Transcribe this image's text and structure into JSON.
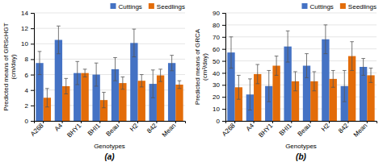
{
  "chart_data": [
    {
      "type": "bar",
      "ylabel": "Predicted means of GRScHGT\n(cm/day)",
      "xlabel": "Genotypes",
      "annotations": [
        "(a)"
      ],
      "categories": [
        "A268",
        "A4",
        "BHY1",
        "BHI1",
        "Beau",
        "H2",
        "842",
        "Mean"
      ],
      "series": [
        {
          "name": "Cuttings",
          "color": "#4472c4",
          "values": [
            7.5,
            10.5,
            6.2,
            6.0,
            6.7,
            10.1,
            4.8,
            7.5
          ],
          "errors": [
            1.5,
            1.8,
            1.5,
            1.5,
            1.5,
            1.8,
            1.8,
            1.0
          ]
        },
        {
          "name": "Seedlings",
          "color": "#e36c09",
          "values": [
            3.0,
            4.5,
            6.2,
            2.7,
            4.9,
            5.2,
            5.9,
            4.7
          ],
          "errors": [
            1.2,
            1.0,
            0.5,
            1.0,
            0.8,
            0.8,
            0.8,
            0.5
          ]
        }
      ],
      "ylim": [
        0,
        14
      ],
      "yticks": [
        0,
        2,
        4,
        6,
        8,
        10,
        12,
        14
      ],
      "grid": true,
      "legend": "upper right"
    },
    {
      "type": "bar",
      "ylabel": "Predicted means of GRCA\n(cm²/day)",
      "xlabel": "Genotypes",
      "annotations": [
        "(b)"
      ],
      "categories": [
        "A268",
        "A4",
        "BHY1",
        "BHI1",
        "Beau",
        "H2",
        "842",
        "Mean"
      ],
      "series": [
        {
          "name": "Cuttings",
          "color": "#4472c4",
          "values": [
            57,
            22,
            29,
            62,
            46,
            68,
            29,
            45
          ],
          "errors": [
            13,
            13,
            13,
            13,
            10,
            12,
            13,
            7
          ]
        },
        {
          "name": "Seedlings",
          "color": "#e36c09",
          "values": [
            28,
            39,
            46,
            33,
            33,
            35,
            54,
            38
          ],
          "errors": [
            10,
            8,
            8,
            8,
            8,
            7,
            12,
            6
          ]
        }
      ],
      "ylim": [
        0,
        90
      ],
      "yticks": [
        0,
        10,
        20,
        30,
        40,
        50,
        60,
        70,
        80,
        90
      ],
      "grid": true,
      "legend": "upper right"
    }
  ]
}
